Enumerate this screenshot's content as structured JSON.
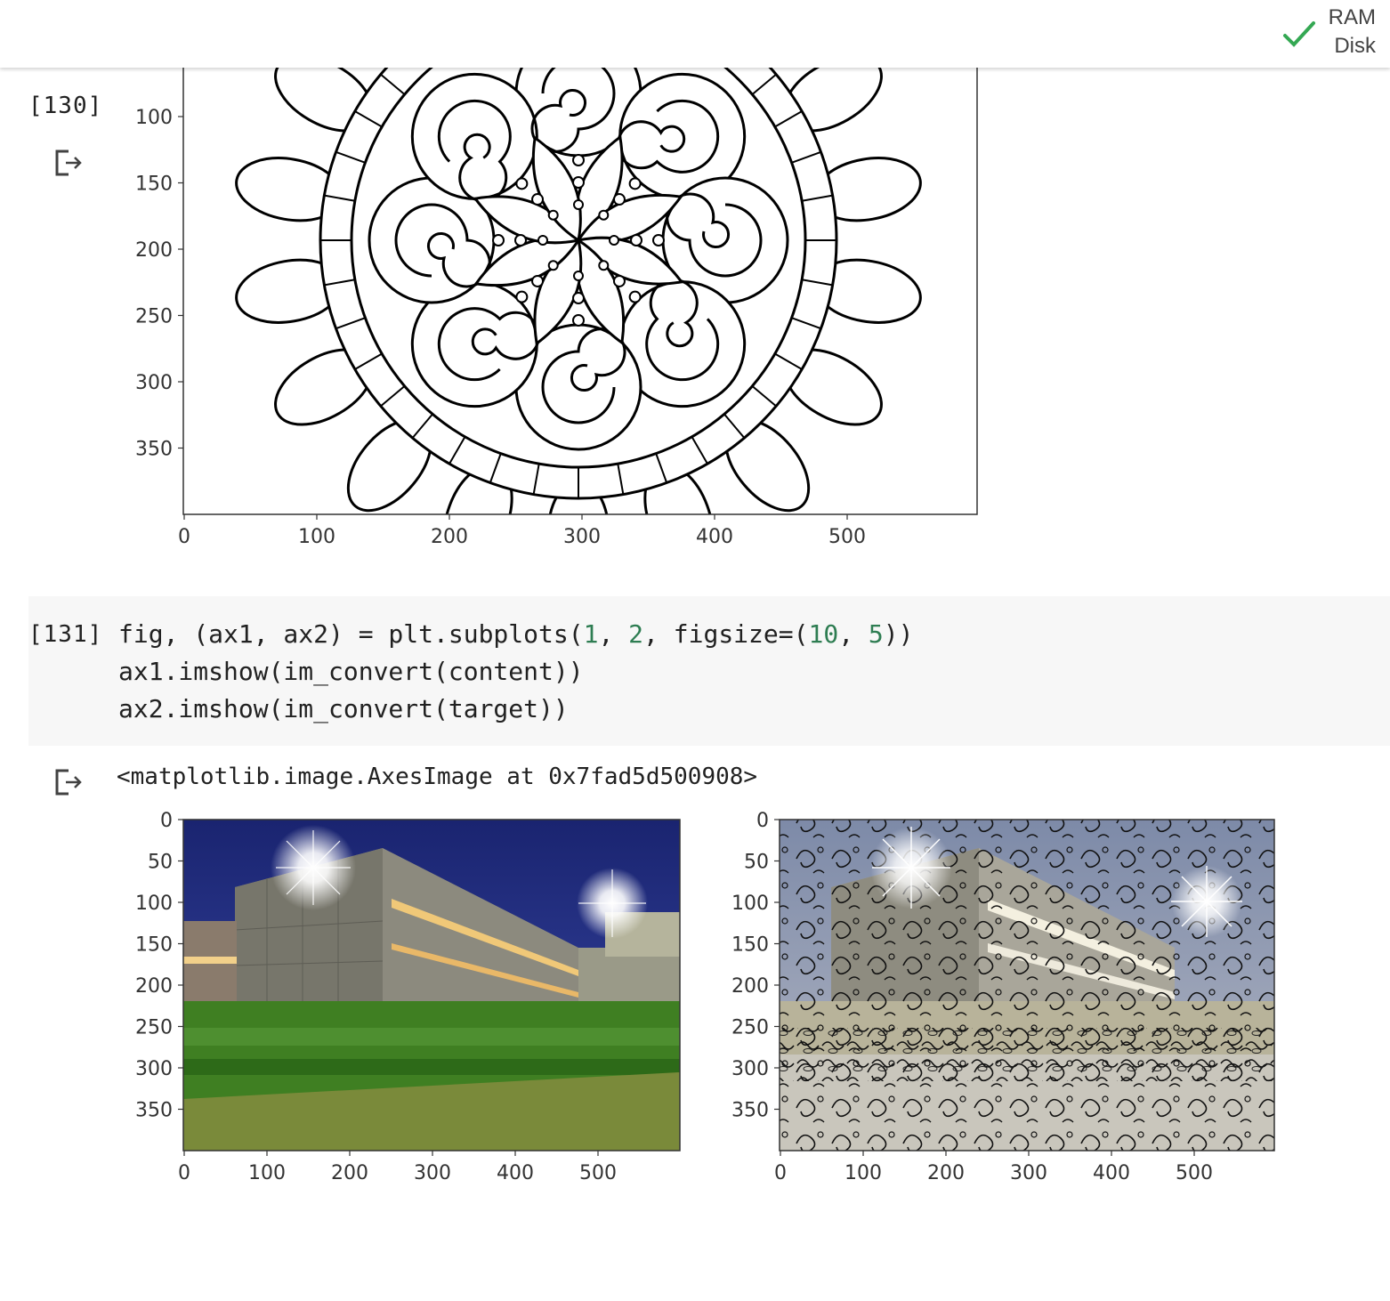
{
  "header": {
    "resources": [
      "RAM",
      "Disk"
    ],
    "status_icon": "check-icon",
    "status_color": "#34a853"
  },
  "cell_130": {
    "exec_count": "[130]",
    "output_icon": "output-arrow-icon",
    "plot": {
      "image_description": "black and white mandala line drawing",
      "x_ticks": [
        "0",
        "100",
        "200",
        "300",
        "400",
        "500"
      ],
      "y_ticks": [
        "100",
        "150",
        "200",
        "250",
        "300",
        "350"
      ]
    }
  },
  "cell_131": {
    "exec_count": "[131]",
    "code_lines": [
      [
        {
          "t": "fig, (ax1, ax2) = plt.subplots(",
          "c": "plain"
        },
        {
          "t": "1",
          "c": "num"
        },
        {
          "t": ", ",
          "c": "plain"
        },
        {
          "t": "2",
          "c": "num"
        },
        {
          "t": ", figsize=(",
          "c": "plain"
        },
        {
          "t": "10",
          "c": "num"
        },
        {
          "t": ", ",
          "c": "plain"
        },
        {
          "t": "5",
          "c": "num"
        },
        {
          "t": "))",
          "c": "plain"
        }
      ],
      [
        {
          "t": "ax1.imshow(im_convert(content))",
          "c": "plain"
        }
      ],
      [
        {
          "t": "ax2.imshow(im_convert(target))",
          "c": "plain"
        }
      ]
    ],
    "output_icon": "output-arrow-icon",
    "output_text": "<matplotlib.image.AxesImage at 0x7fad5d500908>",
    "plots": [
      {
        "image_description": "HDR photo of building with bright lights at night",
        "x_ticks": [
          "0",
          "100",
          "200",
          "300",
          "400",
          "500"
        ],
        "y_ticks": [
          "0",
          "50",
          "100",
          "150",
          "200",
          "250",
          "300",
          "350"
        ]
      },
      {
        "image_description": "style-transferred building image with mandala line style",
        "x_ticks": [
          "0",
          "100",
          "200",
          "300",
          "400",
          "500"
        ],
        "y_ticks": [
          "0",
          "50",
          "100",
          "150",
          "200",
          "250",
          "300",
          "350"
        ]
      }
    ]
  },
  "colors": {
    "code_bg": "#f7f7f7",
    "number": "#2e7d52",
    "sky": "#1f2a7a",
    "grass": "#3f7f22"
  }
}
